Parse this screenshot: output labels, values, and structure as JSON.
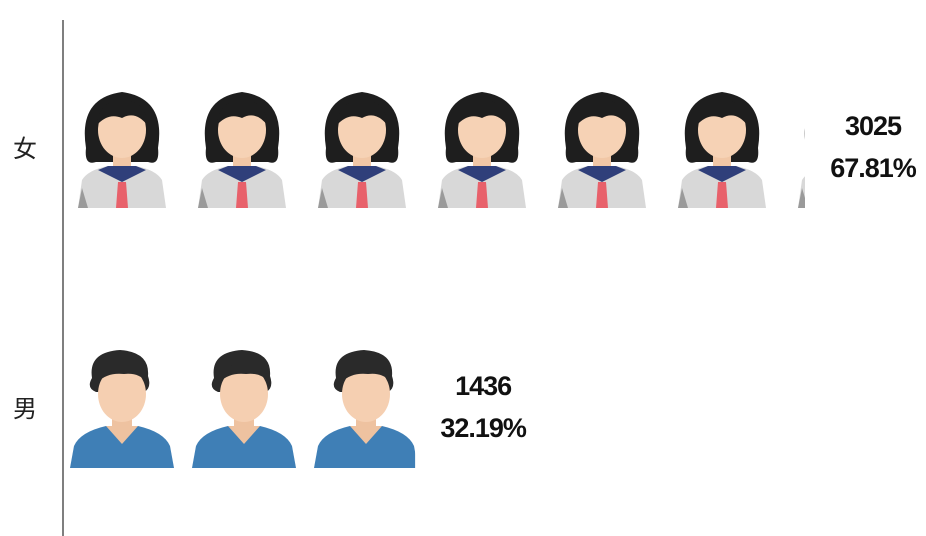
{
  "chart_data": {
    "type": "pictorial-bar",
    "categories": [
      "女",
      "男"
    ],
    "values": [
      3025,
      1436
    ],
    "share": {
      "values": [
        67.81,
        32.19
      ],
      "value_labels": [
        "67.81%",
        "32.19%"
      ]
    }
  }
}
